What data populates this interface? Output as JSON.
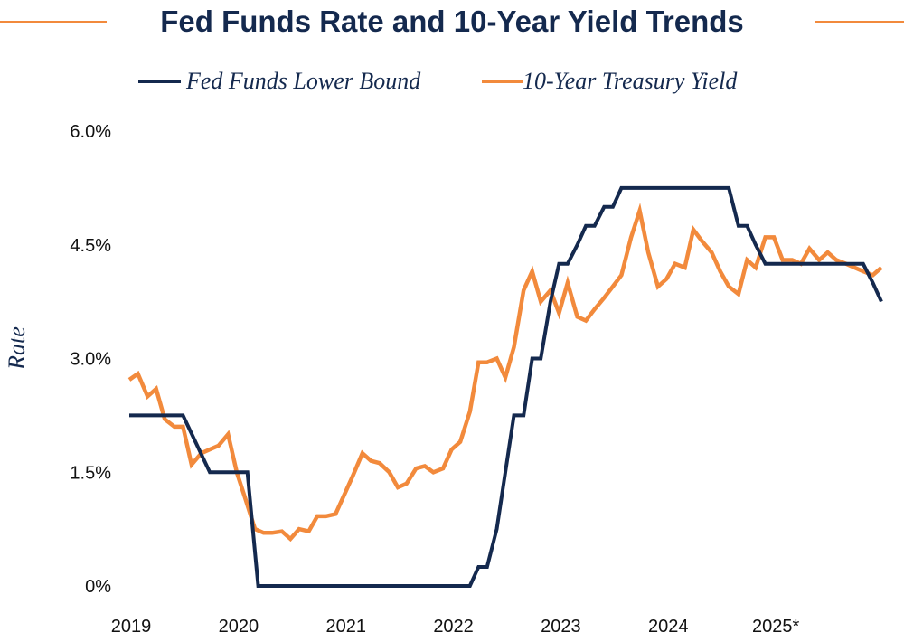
{
  "chart_data": {
    "type": "line",
    "title": "Fed Funds Rate and 10-Year Yield Trends",
    "xlabel": "",
    "ylabel": "Rate",
    "ylim": [
      0,
      6
    ],
    "xlim": [
      2019,
      2026
    ],
    "yticks": [
      {
        "value": 0,
        "label": "0%"
      },
      {
        "value": 1.5,
        "label": "1.5%"
      },
      {
        "value": 3,
        "label": "3.0%"
      },
      {
        "value": 4.5,
        "label": "4.5%"
      },
      {
        "value": 6,
        "label": "6.0%"
      }
    ],
    "xticks": [
      {
        "value": 2019,
        "label": "2019"
      },
      {
        "value": 2020,
        "label": "2020"
      },
      {
        "value": 2021,
        "label": "2021"
      },
      {
        "value": 2022,
        "label": "2022"
      },
      {
        "value": 2023,
        "label": "2023"
      },
      {
        "value": 2024,
        "label": "2024"
      },
      {
        "value": 2025,
        "label": "2025*"
      }
    ],
    "legend_position": "top",
    "series": [
      {
        "name": "Fed Funds Lower Bound",
        "color": "#14294e",
        "x": [
          2019.0,
          2019.5,
          2019.75,
          2020.1,
          2020.2,
          2022.17,
          2022.25,
          2022.33,
          2022.42,
          2022.5,
          2022.58,
          2022.67,
          2022.75,
          2022.83,
          2022.92,
          2023.0,
          2023.08,
          2023.17,
          2023.25,
          2023.33,
          2023.42,
          2023.5,
          2023.58,
          2024.58,
          2024.67,
          2024.75,
          2024.83,
          2024.92,
          2025.83,
          2025.92,
          2026.0
        ],
        "values": [
          2.25,
          2.25,
          1.5,
          1.5,
          0,
          0,
          0.25,
          0.25,
          0.75,
          1.5,
          2.25,
          2.25,
          3.0,
          3.0,
          3.75,
          4.25,
          4.25,
          4.5,
          4.75,
          4.75,
          5.0,
          5.0,
          5.25,
          5.25,
          4.75,
          4.75,
          4.5,
          4.25,
          4.25,
          4.0,
          3.75
        ]
      },
      {
        "name": "10-Year Treasury Yield",
        "color": "#f28a3c",
        "x": [
          2019.0,
          2019.08,
          2019.17,
          2019.25,
          2019.33,
          2019.42,
          2019.5,
          2019.58,
          2019.67,
          2019.75,
          2019.83,
          2019.92,
          2020.0,
          2020.08,
          2020.17,
          2020.25,
          2020.33,
          2020.42,
          2020.5,
          2020.58,
          2020.67,
          2020.75,
          2020.83,
          2020.92,
          2021.0,
          2021.08,
          2021.17,
          2021.25,
          2021.33,
          2021.42,
          2021.5,
          2021.58,
          2021.67,
          2021.75,
          2021.83,
          2021.92,
          2022.0,
          2022.08,
          2022.17,
          2022.25,
          2022.33,
          2022.42,
          2022.5,
          2022.58,
          2022.67,
          2022.75,
          2022.83,
          2022.92,
          2023.0,
          2023.08,
          2023.17,
          2023.25,
          2023.33,
          2023.42,
          2023.5,
          2023.58,
          2023.67,
          2023.75,
          2023.83,
          2023.92,
          2024.0,
          2024.08,
          2024.17,
          2024.25,
          2024.33,
          2024.42,
          2024.5,
          2024.58,
          2024.67,
          2024.75,
          2024.83,
          2024.92,
          2025.0,
          2025.08,
          2025.17,
          2025.25,
          2025.33,
          2025.42,
          2025.5,
          2025.58,
          2025.67,
          2025.75,
          2025.83,
          2025.92,
          2026.0
        ],
        "values": [
          2.72,
          2.8,
          2.5,
          2.6,
          2.2,
          2.1,
          2.1,
          1.6,
          1.75,
          1.8,
          1.85,
          2.0,
          1.5,
          1.15,
          0.75,
          0.7,
          0.7,
          0.72,
          0.62,
          0.75,
          0.72,
          0.92,
          0.92,
          0.95,
          1.2,
          1.45,
          1.75,
          1.65,
          1.62,
          1.5,
          1.3,
          1.35,
          1.55,
          1.58,
          1.5,
          1.55,
          1.8,
          1.9,
          2.3,
          2.95,
          2.95,
          3.0,
          2.75,
          3.15,
          3.9,
          4.15,
          3.75,
          3.9,
          3.6,
          4.0,
          3.55,
          3.5,
          3.65,
          3.8,
          3.95,
          4.1,
          4.6,
          4.95,
          4.4,
          3.95,
          4.05,
          4.25,
          4.2,
          4.7,
          4.55,
          4.4,
          4.15,
          3.95,
          3.85,
          4.3,
          4.2,
          4.6,
          4.6,
          4.3,
          4.3,
          4.25,
          4.45,
          4.3,
          4.4,
          4.3,
          4.25,
          4.2,
          4.15,
          4.1,
          4.2
        ]
      }
    ]
  }
}
